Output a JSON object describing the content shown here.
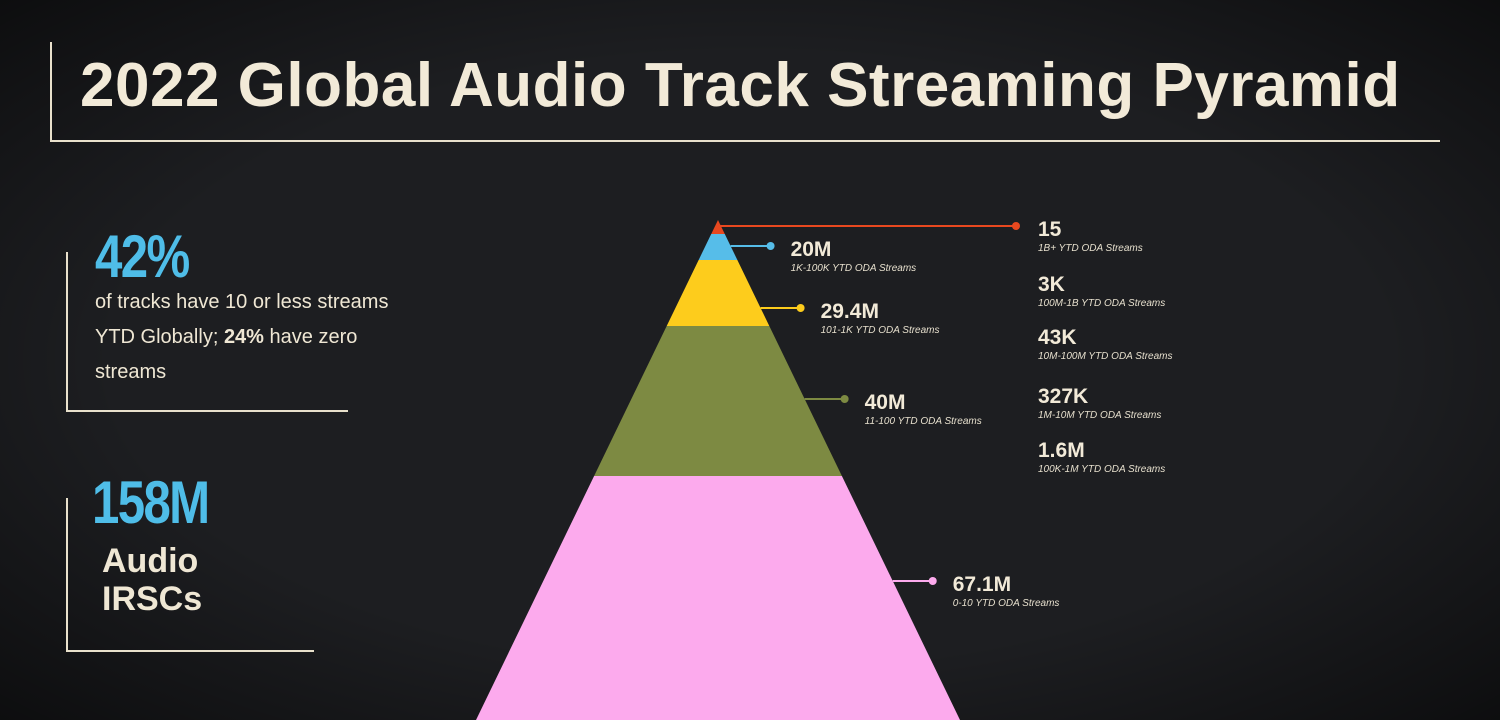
{
  "title": "2022 Global Audio Track Streaming Pyramid",
  "stats": {
    "pct_value": "42%",
    "pct_text_before": "of tracks have 10 or less streams YTD Globally; ",
    "pct_text_bold": "24%",
    "pct_text_after": " have zero streams",
    "total_value": "158M",
    "total_label_line1": "Audio",
    "total_label_line2": "IRSCs"
  },
  "colors": {
    "accent_blue": "#4fbde8",
    "tier_red": "#e8481f",
    "tier_blue": "#56bde9",
    "tier_yellow": "#fdcc1c",
    "tier_olive": "#7d8a42",
    "tier_pink": "#fcaaed",
    "text": "#f2ead8"
  },
  "chart_data": {
    "type": "pyramid",
    "title": "2022 Global Audio Track Streaming Pyramid",
    "tiers": [
      {
        "value": "15",
        "count": 15,
        "label": "1B+ YTD ODA Streams"
      },
      {
        "value": "3K",
        "count": 3000,
        "label": "100M-1B YTD ODA Streams"
      },
      {
        "value": "43K",
        "count": 43000,
        "label": "10M-100M YTD ODA Streams"
      },
      {
        "value": "327K",
        "count": 327000,
        "label": "1M-10M YTD ODA Streams"
      },
      {
        "value": "1.6M",
        "count": 1600000,
        "label": "100K-1M YTD ODA Streams"
      },
      {
        "value": "20M",
        "count": 20000000,
        "label": "1K-100K YTD ODA Streams"
      },
      {
        "value": "29.4M",
        "count": 29400000,
        "label": "101-1K YTD ODA Streams"
      },
      {
        "value": "40M",
        "count": 40000000,
        "label": "11-100 YTD ODA Streams"
      },
      {
        "value": "67.1M",
        "count": 67100000,
        "label": "0-10 YTD ODA Streams"
      }
    ]
  }
}
